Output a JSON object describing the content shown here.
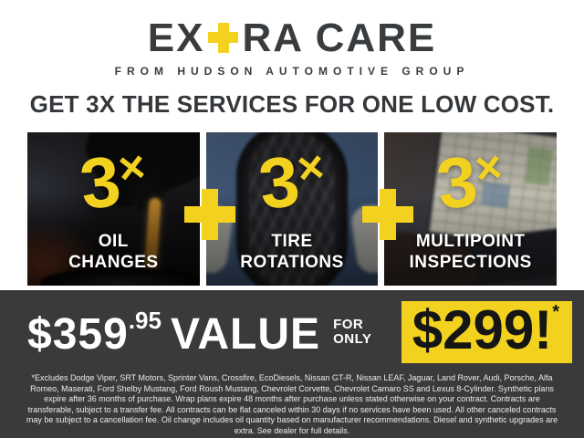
{
  "brand": {
    "logo_prefix": "EX",
    "logo_plus_glyph": "+",
    "logo_suffix": "RA CARE",
    "tagline": "FROM HUDSON AUTOMOTIVE GROUP"
  },
  "headline": "GET 3X THE SERVICES FOR ONE LOW COST.",
  "services": [
    {
      "multiplier": "3",
      "times": "×",
      "label_line1": "OIL",
      "label_line2": "CHANGES",
      "photo": "oil-pour-photo"
    },
    {
      "multiplier": "3",
      "times": "×",
      "label_line1": "TIRE",
      "label_line2": "ROTATIONS",
      "photo": "tire-held-by-technician-photo"
    },
    {
      "multiplier": "3",
      "times": "×",
      "label_line1": "MULTIPOINT",
      "label_line2": "INSPECTIONS",
      "photo": "laptop-inspection-software-photo"
    }
  ],
  "offer": {
    "value_dollars": "$359",
    "value_cents": ".95",
    "value_word": "VALUE",
    "for_word": "FOR",
    "only_word": "ONLY",
    "sale_price": "$299!",
    "asterisk": "*"
  },
  "disclaimer": "*Excludes Dodge Viper, SRT Motors, Sprinter Vans, Crossfire, EcoDiesels, Nissan GT-R, Nissan LEAF, Jaguar, Land Rover, Audi, Porsche, Alfa Romeo, Maserati, Ford Shelby Mustang, Ford Roush Mustang, Chevrolet Corvette, Chevrolet Camaro SS and Lexus 8-Cylinder. Synthetic plans expire after 36 months of purchase. Wrap plans expire 48 months after purchase unless stated otherwise on your contract. Contracts are transferable, subject to a transfer fee. All contracts can be flat canceled within 30 days if no services have been used. All other canceled contracts may be subject to a cancellation fee. Oil change includes oil quantity based on manufacturer recommendations. Diesel and synthetic upgrades are extra. See dealer for full details.",
  "colors": {
    "accent_yellow": "#F2D21F",
    "dark_text": "#393C3F",
    "band_background": "#3A3A3A",
    "label_white": "#FFFFFF"
  }
}
